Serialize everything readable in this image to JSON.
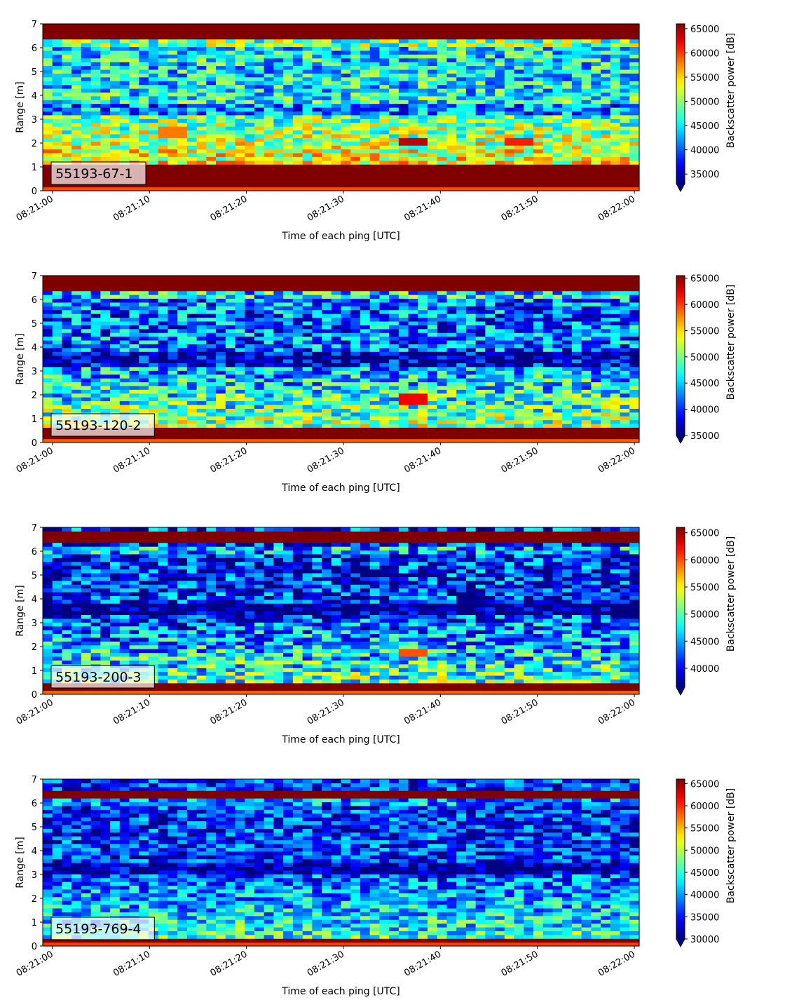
{
  "chart_data": [
    {
      "type": "heatmap",
      "label_box": "55193-67-1",
      "xlabel": "Time of each ping [UTC]",
      "ylabel": "Range [m]",
      "x_ticks": [
        "08:21:00",
        "08:21:10",
        "08:21:20",
        "08:21:30",
        "08:21:40",
        "08:21:50",
        "08:22:00"
      ],
      "y_ticks": [
        "0",
        "1",
        "2",
        "3",
        "4",
        "5",
        "6",
        "7"
      ],
      "ylim": [
        0,
        7
      ],
      "colorbar": {
        "label": "Backscatter power [dB]",
        "min": 33000,
        "max": 66000,
        "extend": "min",
        "ticks": [
          "35000",
          "40000",
          "45000",
          "50000",
          "55000",
          "60000",
          "65000"
        ]
      },
      "features": {
        "floor": 49000,
        "bottom_band_top": 1.1,
        "surface_band": [
          6.35,
          7.0
        ],
        "low_band": 3.4,
        "blobs": [
          {
            "time_s": 37.5,
            "range": 2.05,
            "value": 64000
          },
          {
            "time_s": 48.5,
            "range": 2.05,
            "value": 61000
          },
          {
            "time_s": 12.0,
            "range": 2.45,
            "value": 58000
          }
        ]
      }
    },
    {
      "type": "heatmap",
      "label_box": "55193-120-2",
      "xlabel": "Time of each ping [UTC]",
      "ylabel": "Range [m]",
      "x_ticks": [
        "08:21:00",
        "08:21:10",
        "08:21:20",
        "08:21:30",
        "08:21:40",
        "08:21:50",
        "08:22:00"
      ],
      "y_ticks": [
        "0",
        "1",
        "2",
        "3",
        "4",
        "5",
        "6",
        "7"
      ],
      "ylim": [
        0,
        7
      ],
      "colorbar": {
        "label": "Backscatter power [dB]",
        "min": 35000,
        "max": 65500,
        "extend": "min",
        "ticks": [
          "35000",
          "40000",
          "45000",
          "50000",
          "55000",
          "60000",
          "65000"
        ]
      },
      "features": {
        "floor": 46000,
        "bottom_band_top": 0.6,
        "surface_band": [
          6.4,
          7.0
        ],
        "low_band": 3.5,
        "blobs": [
          {
            "time_s": 37.5,
            "range": 1.8,
            "value": 62000
          }
        ]
      }
    },
    {
      "type": "heatmap",
      "label_box": "55193-200-3",
      "xlabel": "Time of each ping [UTC]",
      "ylabel": "Range [m]",
      "x_ticks": [
        "08:21:00",
        "08:21:10",
        "08:21:20",
        "08:21:30",
        "08:21:40",
        "08:21:50",
        "08:22:00"
      ],
      "y_ticks": [
        "0",
        "1",
        "2",
        "3",
        "4",
        "5",
        "6",
        "7"
      ],
      "ylim": [
        0,
        7
      ],
      "colorbar": {
        "label": "Backscatter power [dB]",
        "min": 36500,
        "max": 66000,
        "extend": "min",
        "ticks": [
          "40000",
          "45000",
          "50000",
          "55000",
          "60000",
          "65000"
        ]
      },
      "features": {
        "floor": 45000,
        "bottom_band_top": 0.45,
        "surface_band": [
          6.3,
          6.8
        ],
        "low_band": 3.6,
        "blobs": [
          {
            "time_s": 37.0,
            "range": 1.75,
            "value": 60000
          }
        ]
      }
    },
    {
      "type": "heatmap",
      "label_box": "55193-769-4",
      "xlabel": "Time of each ping [UTC]",
      "ylabel": "Range [m]",
      "x_ticks": [
        "08:21:00",
        "08:21:10",
        "08:21:20",
        "08:21:30",
        "08:21:40",
        "08:21:50",
        "08:22:00"
      ],
      "y_ticks": [
        "0",
        "1",
        "2",
        "3",
        "4",
        "5",
        "6",
        "7"
      ],
      "ylim": [
        0,
        7
      ],
      "colorbar": {
        "label": "Backscatter power [dB]",
        "min": 30000,
        "max": 66000,
        "extend": "min",
        "ticks": [
          "30000",
          "35000",
          "40000",
          "45000",
          "50000",
          "55000",
          "60000",
          "65000"
        ]
      },
      "features": {
        "floor": 40000,
        "bottom_band_top": 0.35,
        "surface_band": [
          6.25,
          6.55
        ],
        "low_band": 3.2,
        "blobs": []
      }
    }
  ]
}
